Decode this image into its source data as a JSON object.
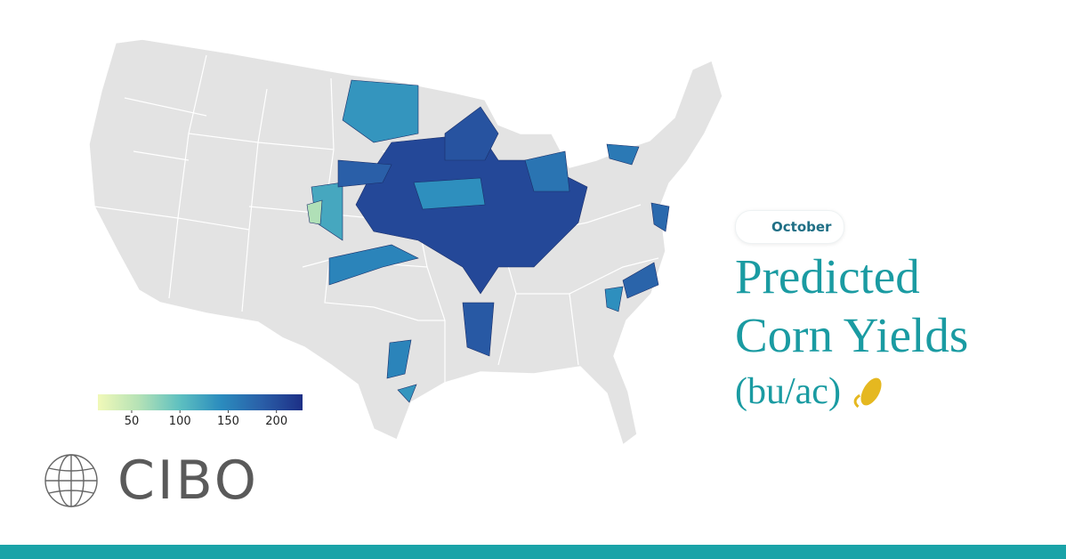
{
  "map": {
    "badge": "October",
    "title": "Predicted Corn Yields",
    "unit": "(bu/ac)",
    "logo": "CIBO",
    "colorbar": {
      "range": [
        15,
        227
      ],
      "ticks": [
        50,
        100,
        150,
        200
      ],
      "colors": [
        "#f1f9b8",
        "#b5e2b6",
        "#5ec0c0",
        "#2b8cbe",
        "#2a5fa8",
        "#1d2f86"
      ]
    },
    "regions": [
      205,
      195,
      135,
      140,
      120,
      165,
      150,
      190,
      60,
      185,
      150,
      135,
      175,
      160,
      180,
      140
    ]
  }
}
